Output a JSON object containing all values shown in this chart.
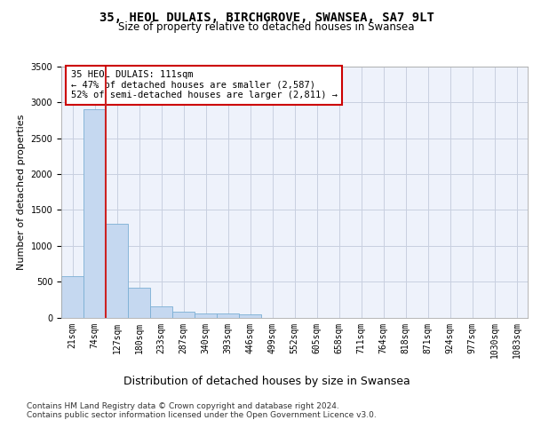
{
  "title": "35, HEOL DULAIS, BIRCHGROVE, SWANSEA, SA7 9LT",
  "subtitle": "Size of property relative to detached houses in Swansea",
  "xlabel": "Distribution of detached houses by size in Swansea",
  "ylabel": "Number of detached properties",
  "bar_color": "#c5d8f0",
  "bar_edge_color": "#7bafd4",
  "highlight_color": "#cc2222",
  "annotation_text": "35 HEOL DULAIS: 111sqm\n← 47% of detached houses are smaller (2,587)\n52% of semi-detached houses are larger (2,811) →",
  "annotation_box_edge_color": "#cc0000",
  "bin_labels": [
    "21sqm",
    "74sqm",
    "127sqm",
    "180sqm",
    "233sqm",
    "287sqm",
    "340sqm",
    "393sqm",
    "446sqm",
    "499sqm",
    "552sqm",
    "605sqm",
    "658sqm",
    "711sqm",
    "764sqm",
    "818sqm",
    "871sqm",
    "924sqm",
    "977sqm",
    "1030sqm",
    "1083sqm"
  ],
  "bar_heights": [
    570,
    2900,
    1310,
    410,
    155,
    80,
    55,
    50,
    45,
    0,
    0,
    0,
    0,
    0,
    0,
    0,
    0,
    0,
    0,
    0,
    0
  ],
  "ylim": [
    0,
    3500
  ],
  "yticks": [
    0,
    500,
    1000,
    1500,
    2000,
    2500,
    3000,
    3500
  ],
  "background_color": "#eef2fb",
  "grid_color": "#c8cfe0",
  "footer_text": "Contains HM Land Registry data © Crown copyright and database right 2024.\nContains public sector information licensed under the Open Government Licence v3.0.",
  "title_fontsize": 10,
  "subtitle_fontsize": 8.5,
  "xlabel_fontsize": 9,
  "ylabel_fontsize": 8,
  "tick_fontsize": 7,
  "footer_fontsize": 6.5,
  "annot_fontsize": 7.5
}
